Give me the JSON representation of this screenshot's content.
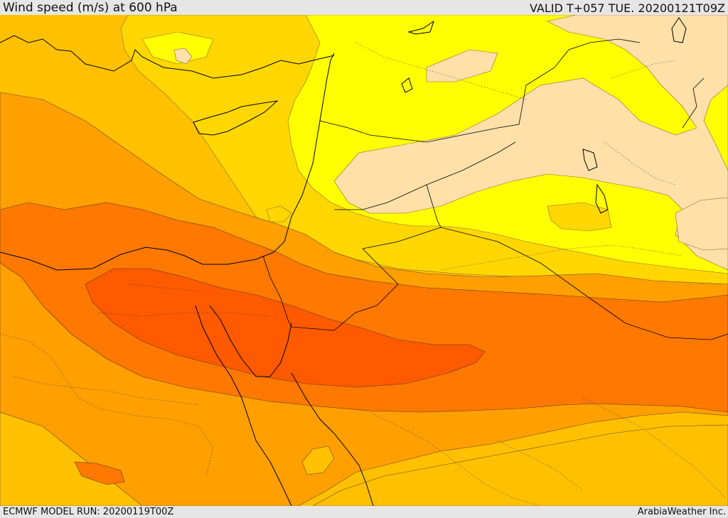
{
  "header": {
    "title": "Wind speed (m/s) at 600 hPa",
    "valid": "VALID T+057 TUE. 20200121T09Z"
  },
  "footer": {
    "model_run": "ECMWF MODEL RUN: 20200119T00Z",
    "credit": "ArabiaWeather Inc."
  },
  "colors": {
    "lightest": "#ffe0a8",
    "yellow": "#ffff00",
    "gold": "#ffd700",
    "amber": "#ffc000",
    "orange": "#ff9f00",
    "dark_orange": "#ff7800",
    "red_orange": "#ff5a00",
    "coast": "#000000"
  }
}
